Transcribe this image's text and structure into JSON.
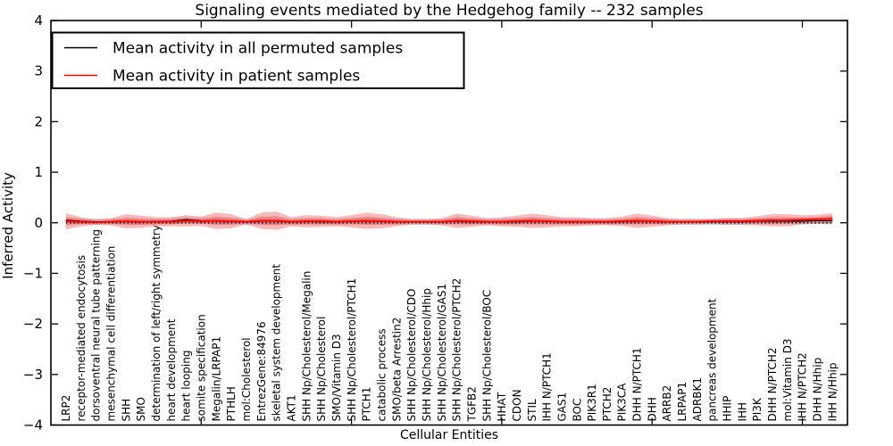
{
  "figure": {
    "title": "Signaling events mediated by the Hedgehog family -- 232 samples",
    "xlabel": "Cellular Entities",
    "ylabel": "Inferred Activity",
    "legend": [
      {
        "label": "Mean activity in all permuted samples",
        "color": "#000000"
      },
      {
        "label": "Mean activity in patient samples",
        "color": "#ff0000"
      }
    ]
  },
  "chart_data": {
    "type": "line",
    "title": "Signaling events mediated by the Hedgehog family -- 232 samples",
    "xlabel": "Cellular Entities",
    "ylabel": "Inferred Activity",
    "ylim": [
      -4,
      4
    ],
    "yticks": [
      -4,
      -3,
      -2,
      -1,
      0,
      1,
      2,
      3,
      4
    ],
    "xlim": [
      0,
      53
    ],
    "xticks": [
      10,
      20,
      30,
      40,
      50
    ],
    "grid": false,
    "legend_position": "upper left",
    "zero_reference_line": 0,
    "categories": [
      "LRP2",
      "receptor-mediated endocytosis",
      "dorsoventral neural tube patterning",
      "mesenchymal cell differentiation",
      "SHH",
      "SMO",
      "determination of left/right symmetry",
      "heart development",
      "heart looping",
      "somite specification",
      "Megalin/LRPAP1",
      "PTHLH",
      "mol:Cholesterol",
      "EntrezGene:84976",
      "skeletal system development",
      "AKT1",
      "SHH Np/Cholesterol/Megalin",
      "SHH Np/Cholesterol",
      "SMO/Vitamin D3",
      "SHH Np/Cholesterol/PTCH1",
      "PTCH1",
      "catabolic process",
      "SMO/beta Arrestin2",
      "SHH Np/Cholesterol/CDO",
      "SHH Np/Cholesterol/Hhip",
      "SHH Np/Cholesterol/GAS1",
      "SHH Np/Cholesterol/PTCH2",
      "TGFB2",
      "SHH Np/Cholesterol/BOC",
      "HHAT",
      "CDON",
      "STIL",
      "IHH N/PTCH1",
      "GAS1",
      "BOC",
      "PIK3R1",
      "PTCH2",
      "PIK3CA",
      "DHH N/PTCH1",
      "DHH",
      "ARRB2",
      "LRPAP1",
      "ADRBK1",
      "pancreas development",
      "HHIP",
      "IHH",
      "PI3K",
      "DHH N/PTCH2",
      "mol:Vitamin D3",
      "IHH N/PTCH2",
      "DHH N/Hhip",
      "IHH N/Hhip"
    ],
    "series": [
      {
        "name": "Mean activity in all permuted samples",
        "color": "#000000",
        "values": [
          0.05,
          0.03,
          0.02,
          0.02,
          0.03,
          0.02,
          0.02,
          0.03,
          0.06,
          0.04,
          0.03,
          0.03,
          0.02,
          0.03,
          0.03,
          0.02,
          0.03,
          0.02,
          0.02,
          0.03,
          0.03,
          0.03,
          0.02,
          0.02,
          0.02,
          0.02,
          0.03,
          0.02,
          0.02,
          0.02,
          0.02,
          0.03,
          0.03,
          0.02,
          0.02,
          0.02,
          0.02,
          0.02,
          0.03,
          0.03,
          0.02,
          0.02,
          0.02,
          0.02,
          0.02,
          0.02,
          0.03,
          0.03,
          0.03,
          0.03,
          0.04,
          0.04
        ]
      },
      {
        "name": "Mean activity in patient samples",
        "color": "#ff0000",
        "values": [
          0.03,
          0.02,
          0.01,
          0.02,
          0.03,
          0.02,
          0.02,
          0.02,
          0.04,
          0.03,
          0.04,
          0.03,
          0.02,
          0.04,
          0.04,
          0.02,
          0.03,
          0.03,
          0.02,
          0.03,
          0.04,
          0.03,
          0.02,
          0.02,
          0.02,
          0.02,
          0.04,
          0.03,
          0.02,
          0.02,
          0.03,
          0.04,
          0.03,
          0.02,
          0.02,
          0.02,
          0.02,
          0.03,
          0.04,
          0.03,
          0.02,
          0.02,
          0.02,
          0.03,
          0.03,
          0.03,
          0.04,
          0.05,
          0.05,
          0.06,
          0.07,
          0.08
        ]
      }
    ],
    "bands": [
      {
        "name": "permuted-samples-std-band",
        "center_series": 0,
        "color": "#c0c0c0",
        "opacity": 0.75,
        "half_widths": [
          0.06,
          0.06,
          0.06,
          0.06,
          0.06,
          0.06,
          0.06,
          0.06,
          0.06,
          0.06,
          0.06,
          0.06,
          0.06,
          0.06,
          0.06,
          0.06,
          0.06,
          0.06,
          0.06,
          0.06,
          0.06,
          0.06,
          0.06,
          0.06,
          0.06,
          0.06,
          0.06,
          0.06,
          0.06,
          0.06,
          0.06,
          0.06,
          0.06,
          0.06,
          0.06,
          0.06,
          0.06,
          0.06,
          0.06,
          0.06,
          0.06,
          0.06,
          0.06,
          0.06,
          0.06,
          0.06,
          0.06,
          0.06,
          0.06,
          0.06,
          0.06,
          0.06
        ]
      },
      {
        "name": "patient-samples-std-band",
        "center_series": 1,
        "color": "#f08080",
        "opacity": 0.55,
        "inner_scale": 0.5,
        "inner_color": "#e86060",
        "half_widths": [
          0.16,
          0.09,
          0.05,
          0.07,
          0.14,
          0.12,
          0.09,
          0.09,
          0.11,
          0.09,
          0.16,
          0.14,
          0.05,
          0.16,
          0.18,
          0.09,
          0.12,
          0.11,
          0.09,
          0.12,
          0.16,
          0.14,
          0.09,
          0.05,
          0.05,
          0.07,
          0.14,
          0.11,
          0.07,
          0.09,
          0.11,
          0.14,
          0.12,
          0.09,
          0.09,
          0.07,
          0.07,
          0.09,
          0.14,
          0.11,
          0.07,
          0.05,
          0.05,
          0.05,
          0.07,
          0.07,
          0.09,
          0.12,
          0.12,
          0.09,
          0.09,
          0.11
        ]
      }
    ]
  }
}
